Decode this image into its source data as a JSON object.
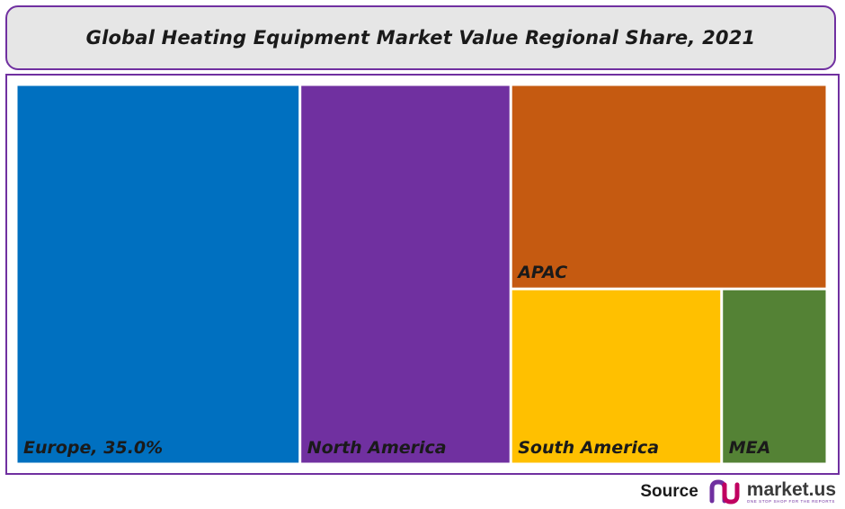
{
  "title": "Global Heating Equipment Market Value Regional Share, 2021",
  "source": {
    "label": "Source",
    "brand_name": "market.us",
    "brand_tagline": "ONE STOP SHOP FOR THE REPORTS",
    "logo_icon": "market-us-logo-icon"
  },
  "colors": {
    "frame_border": "#7030a0",
    "title_background": "#e6e6e6"
  },
  "chart_data": {
    "type": "treemap",
    "title": "Global Heating Equipment Market Value Regional Share, 2021",
    "unit": "%",
    "items": [
      {
        "name": "Europe",
        "label": "Europe, 35.0%",
        "value": 35.0,
        "color": "#0070c0"
      },
      {
        "name": "North America",
        "label": "North America",
        "value": 26.0,
        "color": "#7030a0"
      },
      {
        "name": "APAC",
        "label": "APAC",
        "value": 21.0,
        "color": "#c55a11"
      },
      {
        "name": "South America",
        "label": "South America",
        "value": 12.0,
        "color": "#ffc000"
      },
      {
        "name": "MEA",
        "label": "MEA",
        "value": 6.0,
        "color": "#548235"
      }
    ]
  }
}
